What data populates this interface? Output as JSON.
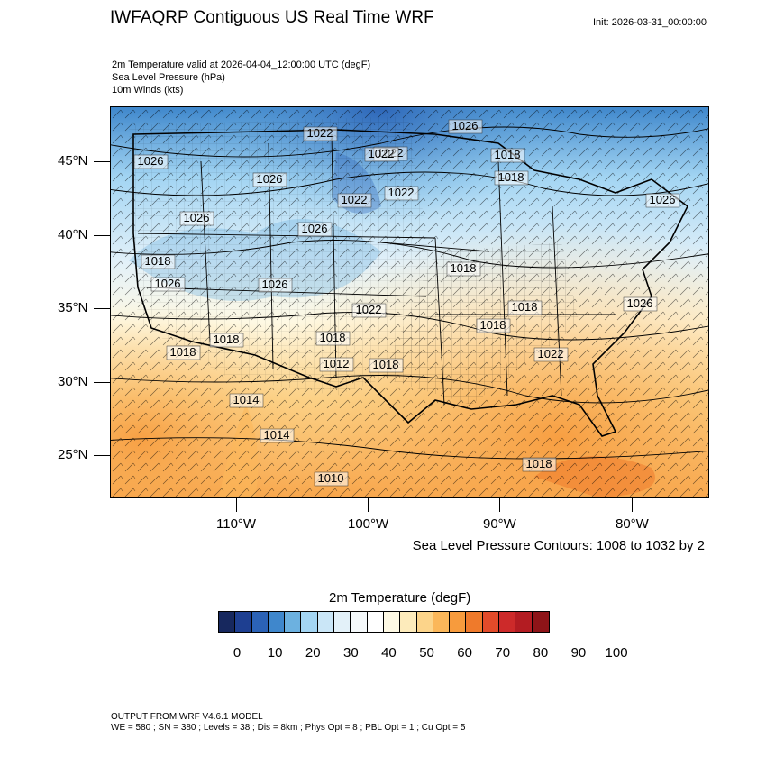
{
  "header": {
    "title": "IWFAQRP Contiguous US Real Time WRF",
    "init": "Init: 2026-03-31_00:00:00"
  },
  "fields": {
    "line1": "2m Temperature valid at 2026-04-04_12:00:00 UTC   (degF)",
    "line2": "Sea Level Pressure   (hPa)",
    "line3": "10m Winds   (kts)"
  },
  "axes": {
    "lat_labels": [
      "45°N",
      "40°N",
      "35°N",
      "30°N",
      "25°N"
    ],
    "lon_labels": [
      "110°W",
      "100°W",
      "90°W",
      "80°W"
    ]
  },
  "contour_note": "Sea Level Pressure Contours: 1008 to 1032 by 2",
  "pressure_labels": [
    "1022",
    "1026",
    "1026",
    "1022",
    "1026",
    "1018",
    "1026",
    "1022",
    "1026",
    "1022",
    "1018",
    "1026",
    "1026",
    "1022",
    "1018",
    "1018",
    "1018",
    "1012",
    "1014",
    "1014",
    "1010",
    "1018",
    "1026",
    "1018",
    "1018",
    "1022",
    "1018",
    "1026",
    "1018",
    "1022",
    "1018"
  ],
  "colorbar": {
    "title": "2m Temperature  (degF)",
    "colors": [
      "#17285e",
      "#1e3f91",
      "#2b62b6",
      "#3f87cc",
      "#6cb1e0",
      "#a3d5f3",
      "#cae6f7",
      "#e3f1f9",
      "#f5f9fb",
      "#ffffff",
      "#fef9e4",
      "#fdebbb",
      "#fcd48a",
      "#fbb75a",
      "#f79b3d",
      "#ef7a2b",
      "#e34b2a",
      "#cd2a2a",
      "#b31c22",
      "#8e1418"
    ],
    "labels": [
      "0",
      "10",
      "20",
      "30",
      "40",
      "50",
      "60",
      "70",
      "80",
      "90",
      "100"
    ]
  },
  "footer": {
    "line1": "OUTPUT FROM WRF V4.6.1 MODEL",
    "line2": "WE = 580 ; SN = 380 ; Levels = 38 ; Dis = 8km ; Phys Opt = 8 ; PBL Opt = 1 ; Cu Opt = 5"
  }
}
